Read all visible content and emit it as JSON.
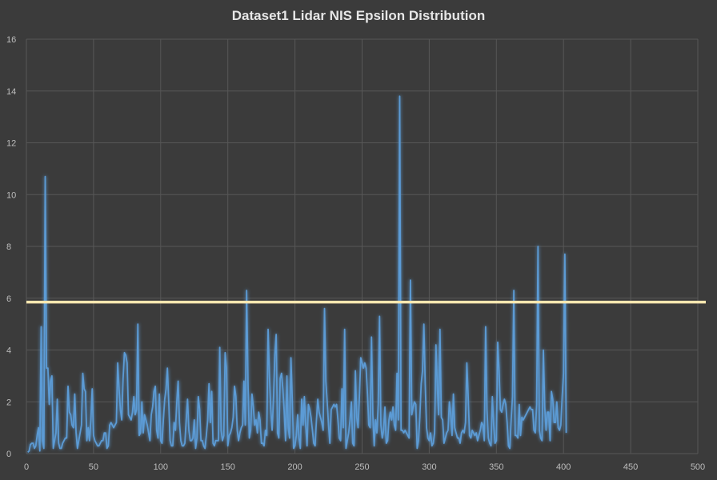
{
  "chart_data": {
    "type": "line",
    "title": "Dataset1 Lidar NIS Epsilon Distribution",
    "xlabel": "",
    "ylabel": "",
    "xlim": [
      0,
      500
    ],
    "ylim": [
      0,
      16
    ],
    "x_ticks": [
      0,
      50,
      100,
      150,
      200,
      250,
      300,
      350,
      400,
      450,
      500
    ],
    "y_ticks": [
      0,
      2,
      4,
      6,
      8,
      10,
      12,
      14,
      16
    ],
    "grid": true,
    "legend": "none",
    "threshold": {
      "value": 5.85,
      "color": "#fbe7b0"
    },
    "series": [
      {
        "color": "#5b9bd5",
        "x_start": 1,
        "x_step": 1,
        "values": [
          0.05,
          0.1,
          0.35,
          0.4,
          0.4,
          0.2,
          0.3,
          0.7,
          1.0,
          0.1,
          4.9,
          0.5,
          0.2,
          10.7,
          3.3,
          3.3,
          1.9,
          2.8,
          3.0,
          0.2,
          0.5,
          0.8,
          2.1,
          0.4,
          0.2,
          0.2,
          0.4,
          0.5,
          0.6,
          0.6,
          2.6,
          1.6,
          1.5,
          1.1,
          1.0,
          2.3,
          0.8,
          0.2,
          0.5,
          0.8,
          1.1,
          3.1,
          2.5,
          2.4,
          0.5,
          1.0,
          0.5,
          1.3,
          2.5,
          0.7,
          0.5,
          0.4,
          0.3,
          0.3,
          0.4,
          0.5,
          0.5,
          0.8,
          0.8,
          0.2,
          0.3,
          1.1,
          1.2,
          1.1,
          1.0,
          1.1,
          1.2,
          3.5,
          2.5,
          1.7,
          1.3,
          2.9,
          3.9,
          3.8,
          3.5,
          1.5,
          1.4,
          1.3,
          1.6,
          2.2,
          1.5,
          1.7,
          5.0,
          0.7,
          0.8,
          2.0,
          0.8,
          1.5,
          1.3,
          1.1,
          0.8,
          0.5,
          1.5,
          1.8,
          2.4,
          2.6,
          0.9,
          0.6,
          2.3,
          0.5,
          0.4,
          1.3,
          2.1,
          2.5,
          3.3,
          2.0,
          0.5,
          0.3,
          0.3,
          1.2,
          0.9,
          2.0,
          2.8,
          1.2,
          0.5,
          0.3,
          0.3,
          0.4,
          1.3,
          2.1,
          0.9,
          0.5,
          0.5,
          0.6,
          1.3,
          0.2,
          0.6,
          2.2,
          1.7,
          0.5,
          0.5,
          0.3,
          0.2,
          0.7,
          1.3,
          2.7,
          1.2,
          2.4,
          0.4,
          0.3,
          0.5,
          0.5,
          0.5,
          4.1,
          0.9,
          0.5,
          0.7,
          3.9,
          3.3,
          0.3,
          0.7,
          0.8,
          1.0,
          1.4,
          2.6,
          2.2,
          0.9,
          0.5,
          0.8,
          1.0,
          1.1,
          2.8,
          1.1,
          6.3,
          2.8,
          0.6,
          0.9,
          2.3,
          1.8,
          1.1,
          1.3,
          0.8,
          1.6,
          1.3,
          0.4,
          0.4,
          0.3,
          0.9,
          0.7,
          4.8,
          3.0,
          1.7,
          0.9,
          2.1,
          3.8,
          4.6,
          0.8,
          0.6,
          2.9,
          3.1,
          2.5,
          1.6,
          0.5,
          3.0,
          1.0,
          0.6,
          3.7,
          2.1,
          0.2,
          0.3,
          0.7,
          1.5,
          0.6,
          0.2,
          2.1,
          1.1,
          2.2,
          1.1,
          0.3,
          1.9,
          1.7,
          1.4,
          0.9,
          0.4,
          0.3,
          1.3,
          2.1,
          1.6,
          1.4,
          1.2,
          0.9,
          5.6,
          2.8,
          2.0,
          1.1,
          0.4,
          1.7,
          1.8,
          1.9,
          1.8,
          1.9,
          1.3,
          0.6,
          0.5,
          2.5,
          1.0,
          4.8,
          0.2,
          0.5,
          0.8,
          1.3,
          2.0,
          0.4,
          0.3,
          3.2,
          1.4,
          1.0,
          2.2,
          3.7,
          3.5,
          3.3,
          3.5,
          3.3,
          2.3,
          1.1,
          1.0,
          4.5,
          1.5,
          0.3,
          1.3,
          0.8,
          1.9,
          5.3,
          1.1,
          0.6,
          0.9,
          1.8,
          0.4,
          0.5,
          1.3,
          1.6,
          1.3,
          1.8,
          1.1,
          0.9,
          3.1,
          1.3,
          13.8,
          0.9,
          0.9,
          0.8,
          0.9,
          0.8,
          0.7,
          0.6,
          6.7,
          1.5,
          1.8,
          2.0,
          1.9,
          0.2,
          0.5,
          1.4,
          2.7,
          3.2,
          5.0,
          2.7,
          1.0,
          0.6,
          0.5,
          0.8,
          0.3,
          0.4,
          0.8,
          4.2,
          2.6,
          1.5,
          4.8,
          1.4,
          1.3,
          0.4,
          0.6,
          0.8,
          0.9,
          2.0,
          1.5,
          0.7,
          2.3,
          1.0,
          0.8,
          0.6,
          0.6,
          0.4,
          0.8,
          0.9,
          0.8,
          1.2,
          3.5,
          2.2,
          0.7,
          0.6,
          0.9,
          0.8,
          0.7,
          0.8,
          0.5,
          0.7,
          0.9,
          1.2,
          1.1,
          0.5,
          4.9,
          1.7,
          0.6,
          0.4,
          0.3,
          2.2,
          1.1,
          0.4,
          0.5,
          4.3,
          3.2,
          1.7,
          1.6,
          1.9,
          2.1,
          1.9,
          1.2,
          0.3,
          0.2,
          1.3,
          2.2,
          6.3,
          0.7,
          0.7,
          0.6,
          1.9,
          0.7,
          1.4,
          1.3,
          1.4,
          1.5,
          1.6,
          1.7,
          1.8,
          1.7,
          1.7,
          0.9,
          0.8,
          1.9,
          8.0,
          0.9,
          0.6,
          0.5,
          4.0,
          1.8,
          0.9,
          1.6,
          1.6,
          0.5,
          2.4,
          2.1,
          1.2,
          1.2,
          2.0,
          1.0,
          0.9,
          1.1,
          2.2,
          3.1,
          7.7,
          0.8
        ]
      }
    ]
  }
}
